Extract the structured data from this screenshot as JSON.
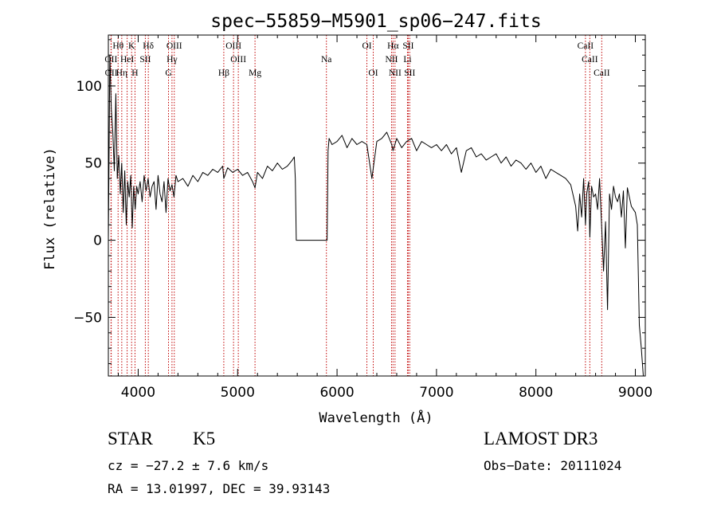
{
  "chart_data": {
    "type": "line",
    "title": "spec−55859−M5901_sp06−247.fits",
    "xlabel": "Wavelength (Å)",
    "ylabel": "Flux (relative)",
    "xlim": [
      3700,
      9100
    ],
    "ylim": [
      -88,
      133
    ],
    "x_ticks": [
      4000,
      5000,
      6000,
      7000,
      8000,
      9000
    ],
    "x_tick_labels": [
      "4000",
      "5000",
      "6000",
      "7000",
      "8000",
      "9000"
    ],
    "y_ticks": [
      -50,
      0,
      50,
      100
    ],
    "y_tick_labels": [
      "−50",
      "0",
      "50",
      "100"
    ],
    "series": [
      {
        "name": "spectrum",
        "x": [
          3700,
          3715,
          3730,
          3745,
          3760,
          3775,
          3790,
          3805,
          3820,
          3835,
          3850,
          3865,
          3880,
          3895,
          3910,
          3925,
          3940,
          3955,
          3970,
          3985,
          4000,
          4020,
          4040,
          4060,
          4080,
          4100,
          4120,
          4140,
          4160,
          4180,
          4200,
          4220,
          4240,
          4260,
          4280,
          4300,
          4320,
          4340,
          4360,
          4380,
          4400,
          4450,
          4500,
          4550,
          4600,
          4650,
          4700,
          4750,
          4800,
          4850,
          4861,
          4900,
          4950,
          5000,
          5050,
          5100,
          5150,
          5175,
          5200,
          5250,
          5300,
          5350,
          5400,
          5450,
          5500,
          5550,
          5570,
          5580,
          5590,
          5900,
          5910,
          5920,
          5950,
          6000,
          6050,
          6100,
          6150,
          6200,
          6250,
          6300,
          6350,
          6400,
          6450,
          6500,
          6550,
          6563,
          6600,
          6650,
          6700,
          6750,
          6800,
          6850,
          6900,
          6950,
          7000,
          7050,
          7100,
          7150,
          7200,
          7250,
          7300,
          7350,
          7400,
          7450,
          7500,
          7550,
          7600,
          7650,
          7700,
          7750,
          7800,
          7850,
          7900,
          7950,
          8000,
          8050,
          8100,
          8150,
          8200,
          8250,
          8300,
          8350,
          8400,
          8420,
          8440,
          8460,
          8480,
          8498,
          8510,
          8530,
          8542,
          8560,
          8580,
          8600,
          8620,
          8640,
          8662,
          8680,
          8700,
          8720,
          8740,
          8760,
          8780,
          8800,
          8820,
          8840,
          8860,
          8880,
          8900,
          8920,
          8940,
          8960,
          8980,
          9000,
          9020,
          9040,
          9060,
          9080
        ],
        "y": [
          0,
          120,
          85,
          70,
          45,
          95,
          40,
          55,
          30,
          50,
          18,
          45,
          10,
          38,
          28,
          42,
          8,
          35,
          20,
          35,
          30,
          38,
          25,
          42,
          32,
          40,
          28,
          35,
          38,
          20,
          42,
          30,
          25,
          38,
          18,
          40,
          32,
          36,
          28,
          42,
          38,
          40,
          35,
          42,
          38,
          44,
          42,
          46,
          44,
          48,
          40,
          47,
          44,
          46,
          42,
          44,
          38,
          34,
          44,
          40,
          48,
          45,
          50,
          46,
          48,
          52,
          54,
          40,
          0,
          0,
          58,
          66,
          62,
          64,
          68,
          60,
          66,
          62,
          64,
          62,
          40,
          64,
          66,
          70,
          62,
          58,
          66,
          60,
          64,
          66,
          58,
          64,
          62,
          60,
          62,
          58,
          62,
          56,
          60,
          44,
          58,
          60,
          54,
          56,
          52,
          54,
          56,
          50,
          54,
          48,
          52,
          50,
          46,
          50,
          44,
          48,
          40,
          46,
          44,
          42,
          40,
          36,
          22,
          6,
          30,
          15,
          40,
          10,
          30,
          38,
          2,
          35,
          28,
          30,
          20,
          40,
          8,
          -20,
          12,
          -45,
          30,
          20,
          35,
          28,
          25,
          30,
          15,
          32,
          -5,
          34,
          28,
          22,
          20,
          18,
          10,
          -55,
          -70,
          -88
        ],
        "color": "#000000"
      }
    ],
    "lines": [
      {
        "label": "Hθ",
        "wavelength": 3798,
        "row": 0
      },
      {
        "label": "K",
        "wavelength": 3934,
        "row": 0
      },
      {
        "label": "Hδ",
        "wavelength": 4102,
        "row": 0
      },
      {
        "label": "OIII",
        "wavelength": 4363,
        "row": 0
      },
      {
        "label": "OIII",
        "wavelength": 4959,
        "row": 0
      },
      {
        "label": "OI",
        "wavelength": 6300,
        "row": 0
      },
      {
        "label": "Hα",
        "wavelength": 6563,
        "row": 0
      },
      {
        "label": "SII",
        "wavelength": 6716,
        "row": 0
      },
      {
        "label": "CaII",
        "wavelength": 8498,
        "row": 0
      },
      {
        "label": "OII",
        "wavelength": 3727,
        "row": 1
      },
      {
        "label": "HeI",
        "wavelength": 3889,
        "row": 1
      },
      {
        "label": "SII",
        "wavelength": 4072,
        "row": 1
      },
      {
        "label": "Hγ",
        "wavelength": 4340,
        "row": 1
      },
      {
        "label": "OIII",
        "wavelength": 5007,
        "row": 1
      },
      {
        "label": "Na",
        "wavelength": 5893,
        "row": 1
      },
      {
        "label": "NII",
        "wavelength": 6548,
        "row": 1
      },
      {
        "label": "Li",
        "wavelength": 6708,
        "row": 1
      },
      {
        "label": "CaII",
        "wavelength": 8542,
        "row": 1
      },
      {
        "label": "OII",
        "wavelength": 3729,
        "row": 2
      },
      {
        "label": "Hη",
        "wavelength": 3835,
        "row": 2
      },
      {
        "label": "H",
        "wavelength": 3968,
        "row": 2
      },
      {
        "label": "G",
        "wavelength": 4305,
        "row": 2
      },
      {
        "label": "Hβ",
        "wavelength": 4861,
        "row": 2
      },
      {
        "label": "Mg",
        "wavelength": 5175,
        "row": 2
      },
      {
        "label": "OI",
        "wavelength": 6364,
        "row": 2
      },
      {
        "label": "NII",
        "wavelength": 6583,
        "row": 2
      },
      {
        "label": "SII",
        "wavelength": 6731,
        "row": 2
      },
      {
        "label": "CaII",
        "wavelength": 8662,
        "row": 2
      }
    ]
  },
  "info": {
    "class": "STAR",
    "subclass": "K5",
    "survey": "LAMOST DR3",
    "cz": "cz = −27.2 ± 7.6 km/s",
    "obs_date": "Obs−Date: 20111024",
    "radec": "RA =  13.01997, DEC =  39.93143"
  }
}
